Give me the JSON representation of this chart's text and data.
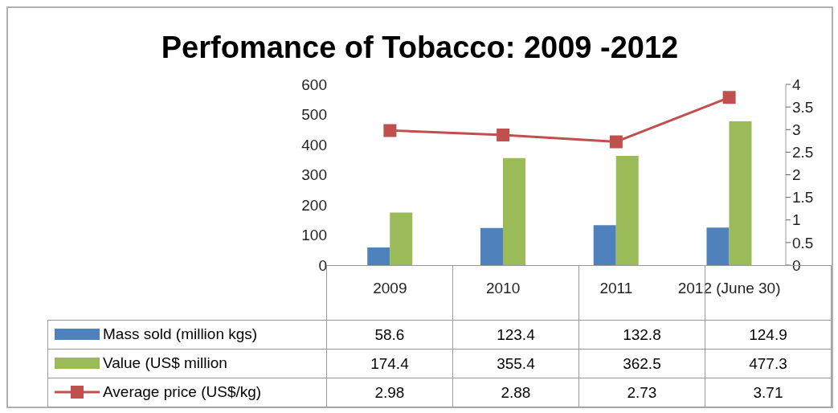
{
  "chart_data": {
    "type": "bar",
    "title": "Perfomance of Tobacco: 2009 -2012",
    "categories": [
      "2009",
      "2010",
      "2011",
      "2012 (June 30)"
    ],
    "series": [
      {
        "name": "Mass sold (million kgs)",
        "color": "#4f81bd",
        "values": [
          58.6,
          123.4,
          132.8,
          124.9
        ]
      },
      {
        "name": "Value (US$ million",
        "color": "#9bbb59",
        "values": [
          174.4,
          355.4,
          362.5,
          477.3
        ]
      },
      {
        "name": "Average price (US$/kg)",
        "type": "line",
        "axis": "y2",
        "color": "#c0504d",
        "marker": "square",
        "values": [
          2.98,
          2.88,
          2.73,
          3.71
        ]
      }
    ],
    "ylim": [
      0,
      600
    ],
    "yticks": [
      0,
      100,
      200,
      300,
      400,
      500,
      600
    ],
    "y2lim": [
      0,
      4
    ],
    "y2ticks": [
      0,
      0.5,
      1,
      1.5,
      2,
      2.5,
      3,
      3.5,
      4
    ],
    "grid": false,
    "legend": "bottom",
    "data_labels": true
  }
}
